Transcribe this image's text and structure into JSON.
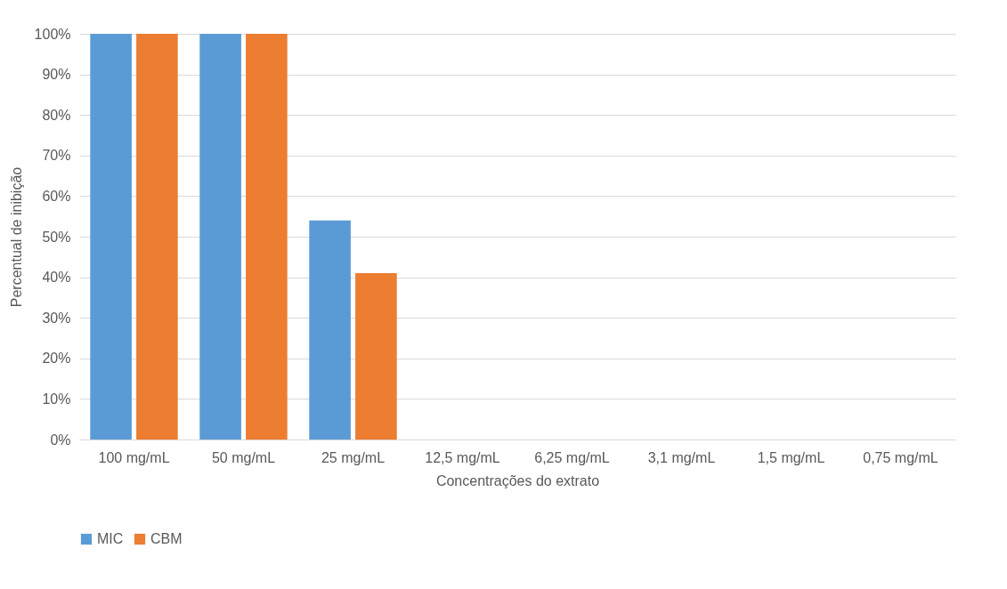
{
  "chart_data": {
    "type": "bar",
    "xlabel": "Concentrações do extrato",
    "ylabel": "Percentual de inibição",
    "categories": [
      "100 mg/mL",
      "50  mg/mL",
      "25 mg/mL",
      "12,5 mg/mL",
      "6,25 mg/mL",
      "3,1 mg/mL",
      "1,5 mg/mL",
      "0,75 mg/mL"
    ],
    "series": [
      {
        "name": "MIC",
        "color": "#5b9bd5",
        "values": [
          100,
          100,
          54,
          0,
          0,
          0,
          0,
          0
        ]
      },
      {
        "name": "CBM",
        "color": "#ed7d31",
        "values": [
          100,
          100,
          41,
          0,
          0,
          0,
          0,
          0
        ]
      }
    ],
    "ylim": [
      0,
      100
    ],
    "yticks": [
      {
        "value": 0,
        "label": "0%"
      },
      {
        "value": 10,
        "label": "10%"
      },
      {
        "value": 20,
        "label": "20%"
      },
      {
        "value": 30,
        "label": "30%"
      },
      {
        "value": 40,
        "label": "40%"
      },
      {
        "value": 50,
        "label": "50%"
      },
      {
        "value": 60,
        "label": "60%"
      },
      {
        "value": 70,
        "label": "70%"
      },
      {
        "value": 80,
        "label": "80%"
      },
      {
        "value": 90,
        "label": "90%"
      },
      {
        "value": 100,
        "label": "100%"
      }
    ],
    "grid": "y",
    "legend": "bottom"
  }
}
